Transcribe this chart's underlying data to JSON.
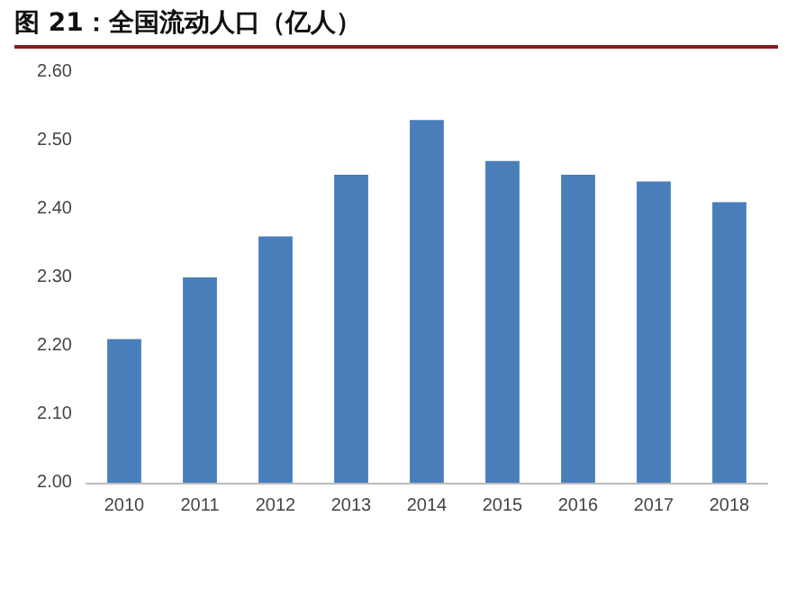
{
  "chart_data": {
    "type": "bar",
    "title": "图 21：全国流动人口（亿人）",
    "categories": [
      "2010",
      "2011",
      "2012",
      "2013",
      "2014",
      "2015",
      "2016",
      "2017",
      "2018"
    ],
    "values": [
      2.21,
      2.3,
      2.36,
      2.45,
      2.53,
      2.47,
      2.45,
      2.44,
      2.41
    ],
    "color": "#4a7ebb",
    "ylim": [
      2.0,
      2.6
    ],
    "yticks": [
      {
        "value": 2.0,
        "label": "2.00"
      },
      {
        "value": 2.1,
        "label": "2.10"
      },
      {
        "value": 2.2,
        "label": "2.20"
      },
      {
        "value": 2.3,
        "label": "2.30"
      },
      {
        "value": 2.4,
        "label": "2.40"
      },
      {
        "value": 2.5,
        "label": "2.50"
      },
      {
        "value": 2.6,
        "label": "2.60"
      }
    ],
    "grid": false
  }
}
